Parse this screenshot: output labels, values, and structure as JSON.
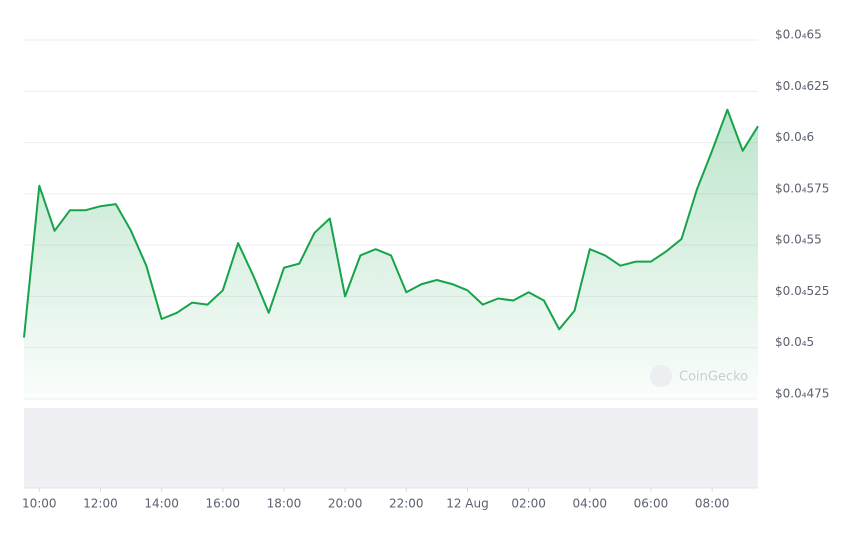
{
  "chart_data": {
    "type": "line",
    "x": [
      9.5,
      10,
      10.5,
      11,
      11.5,
      12,
      12.5,
      13,
      13.5,
      14,
      14.5,
      15,
      15.5,
      16,
      16.5,
      17,
      17.5,
      18,
      18.5,
      19,
      19.5,
      20,
      20.5,
      21,
      21.5,
      22,
      22.5,
      23,
      23.5,
      24,
      24.5,
      25,
      25.5,
      26,
      26.5,
      27,
      27.5,
      28,
      28.5,
      29,
      29.5,
      30,
      30.5,
      31,
      31.5,
      32,
      32.5,
      33,
      33.5
    ],
    "series": [
      {
        "color": "#16a34a",
        "values": [
          4.505e-05,
          4.579e-05,
          4.557e-05,
          4.567e-05,
          4.567e-05,
          4.569e-05,
          4.57e-05,
          4.557e-05,
          4.54e-05,
          4.514e-05,
          4.517e-05,
          4.522e-05,
          4.521e-05,
          4.528e-05,
          4.551e-05,
          4.535e-05,
          4.517e-05,
          4.539e-05,
          4.541e-05,
          4.556e-05,
          4.563e-05,
          4.525e-05,
          4.545e-05,
          4.548e-05,
          4.545e-05,
          4.527e-05,
          4.531e-05,
          4.533e-05,
          4.531e-05,
          4.528e-05,
          4.521e-05,
          4.524e-05,
          4.523e-05,
          4.527e-05,
          4.523e-05,
          4.509e-05,
          4.518e-05,
          4.548e-05,
          4.545e-05,
          4.54e-05,
          4.542e-05,
          4.542e-05,
          4.547e-05,
          4.553e-05,
          4.577e-05,
          4.596e-05,
          4.616e-05,
          4.596e-05,
          4.608e-05
        ]
      }
    ],
    "xlim": [
      9.5,
      33.5
    ],
    "xticks": [
      {
        "value": 10,
        "label": "10:00"
      },
      {
        "value": 12,
        "label": "12:00"
      },
      {
        "value": 14,
        "label": "14:00"
      },
      {
        "value": 16,
        "label": "16:00"
      },
      {
        "value": 18,
        "label": "18:00"
      },
      {
        "value": 20,
        "label": "20:00"
      },
      {
        "value": 22,
        "label": "22:00"
      },
      {
        "value": 24,
        "label": "12 Aug"
      },
      {
        "value": 26,
        "label": "02:00"
      },
      {
        "value": 28,
        "label": "04:00"
      },
      {
        "value": 30,
        "label": "06:00"
      },
      {
        "value": 32,
        "label": "08:00"
      }
    ],
    "ylim": [
      4.475e-05,
      4.65e-05
    ],
    "yticks": [
      {
        "value": 4.65e-05,
        "label": "$0.0₄65"
      },
      {
        "value": 4.625e-05,
        "label": "$0.0₄625"
      },
      {
        "value": 4.6e-05,
        "label": "$0.0₄6"
      },
      {
        "value": 4.575e-05,
        "label": "$0.0₄575"
      },
      {
        "value": 4.55e-05,
        "label": "$0.0₄55"
      },
      {
        "value": 4.525e-05,
        "label": "$0.0₄525"
      },
      {
        "value": 4.5e-05,
        "label": "$0.0₄5"
      },
      {
        "value": 4.475e-05,
        "label": "$0.0₄475"
      }
    ],
    "grid": true,
    "watermark": "CoinGecko"
  }
}
